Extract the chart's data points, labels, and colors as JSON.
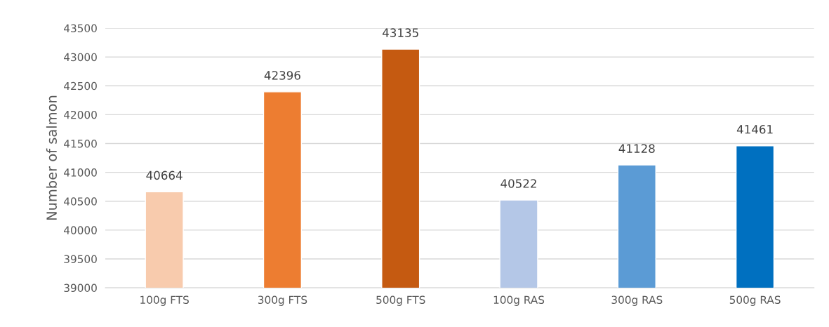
{
  "chart_data": {
    "type": "bar",
    "ylabel": "Number of salmon",
    "categories": [
      "100g FTS",
      "300g FTS",
      "500g FTS",
      "100g RAS",
      "300g RAS",
      "500g RAS"
    ],
    "values": [
      40664,
      42396,
      43135,
      40522,
      41128,
      41461
    ],
    "colors": [
      "#f8cbad",
      "#ed7d31",
      "#c55a11",
      "#b4c7e7",
      "#5b9bd5",
      "#0070c0"
    ],
    "ylim": [
      39000,
      43500
    ],
    "yticks": [
      39000,
      39500,
      40000,
      40500,
      41000,
      41500,
      42000,
      42500,
      43000,
      43500
    ],
    "grid": "y",
    "data_labels": true
  }
}
